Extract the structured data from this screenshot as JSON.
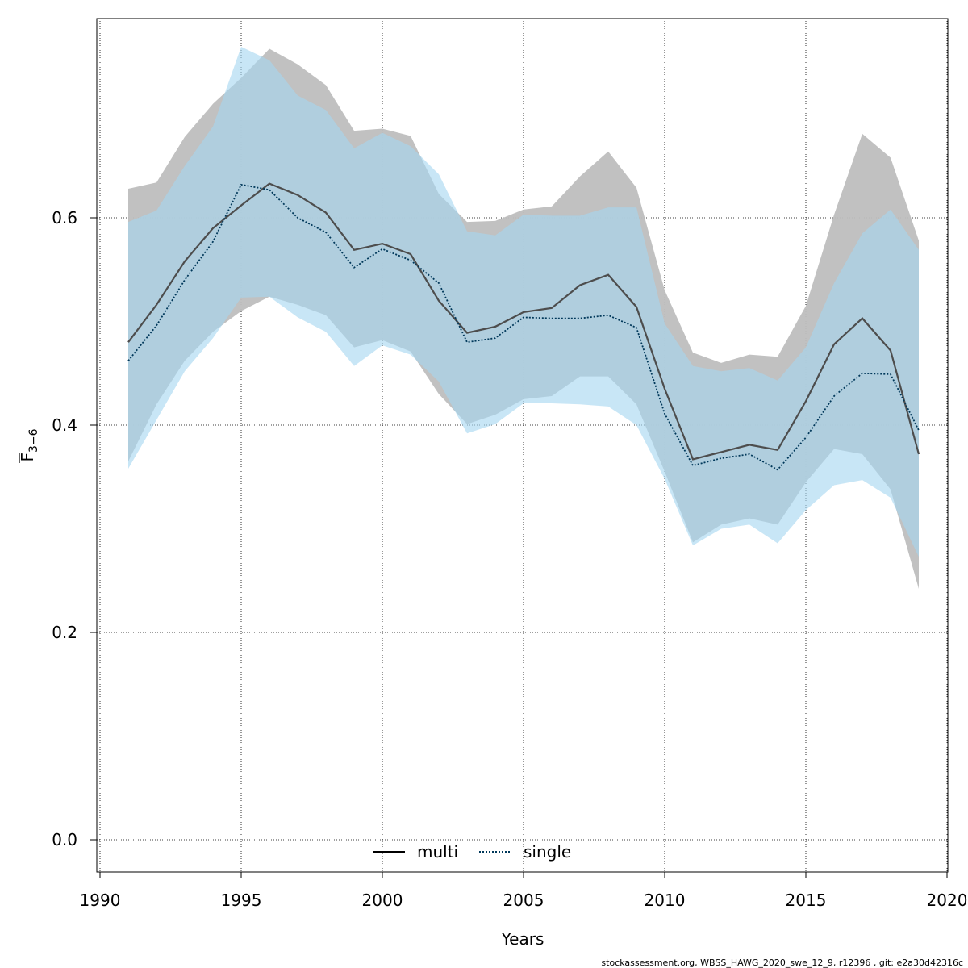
{
  "chart_data": {
    "type": "area",
    "title": "",
    "xlabel": "Years",
    "ylabel_main": "F",
    "ylabel_sub": "3−6",
    "xlim": [
      1990,
      2020
    ],
    "ylim": [
      0.0,
      0.78
    ],
    "xticks": [
      1990,
      1995,
      2000,
      2005,
      2010,
      2015,
      2020
    ],
    "yticks": [
      0.0,
      0.2,
      0.4,
      0.6
    ],
    "ytick_labels": [
      "0.0",
      "0.2",
      "0.4",
      "0.6"
    ],
    "grid": true,
    "legend_position": "bottom-center",
    "x": [
      1991,
      1992,
      1993,
      1994,
      1995,
      1996,
      1997,
      1998,
      1999,
      2000,
      2001,
      2002,
      2003,
      2004,
      2005,
      2006,
      2007,
      2008,
      2009,
      2010,
      2011,
      2012,
      2013,
      2014,
      2015,
      2016,
      2017,
      2018,
      2019
    ],
    "series": [
      {
        "name": "multi",
        "line_style": "solid",
        "line_color": "#4d4d4d",
        "band_color": "#bebebe",
        "values": [
          0.48,
          0.516,
          0.558,
          0.59,
          0.612,
          0.633,
          0.622,
          0.605,
          0.569,
          0.575,
          0.565,
          0.52,
          0.489,
          0.495,
          0.509,
          0.513,
          0.535,
          0.545,
          0.514,
          0.435,
          0.367,
          0.374,
          0.381,
          0.376,
          0.423,
          0.478,
          0.503,
          0.472,
          0.372
        ],
        "lower": [
          0.365,
          0.42,
          0.462,
          0.49,
          0.51,
          0.524,
          0.516,
          0.506,
          0.475,
          0.482,
          0.471,
          0.43,
          0.401,
          0.41,
          0.425,
          0.428,
          0.447,
          0.447,
          0.42,
          0.355,
          0.287,
          0.304,
          0.31,
          0.304,
          0.345,
          0.377,
          0.372,
          0.338,
          0.242
        ],
        "upper": [
          0.628,
          0.634,
          0.678,
          0.71,
          0.735,
          0.763,
          0.748,
          0.728,
          0.684,
          0.686,
          0.679,
          0.623,
          0.596,
          0.597,
          0.608,
          0.611,
          0.64,
          0.664,
          0.629,
          0.53,
          0.47,
          0.46,
          0.468,
          0.466,
          0.515,
          0.603,
          0.681,
          0.658,
          0.578
        ]
      },
      {
        "name": "single",
        "line_style": "dotted",
        "line_color": "#00385a",
        "band_color": "#a7d7f0",
        "values": [
          0.462,
          0.496,
          0.54,
          0.577,
          0.632,
          0.627,
          0.6,
          0.586,
          0.552,
          0.57,
          0.559,
          0.537,
          0.48,
          0.484,
          0.504,
          0.503,
          0.503,
          0.506,
          0.494,
          0.411,
          0.361,
          0.368,
          0.372,
          0.357,
          0.388,
          0.428,
          0.45,
          0.449,
          0.395
        ],
        "lower": [
          0.358,
          0.405,
          0.452,
          0.484,
          0.523,
          0.524,
          0.504,
          0.49,
          0.457,
          0.477,
          0.468,
          0.442,
          0.392,
          0.401,
          0.421,
          0.421,
          0.42,
          0.418,
          0.4,
          0.348,
          0.284,
          0.3,
          0.304,
          0.286,
          0.318,
          0.342,
          0.347,
          0.33,
          0.273
        ],
        "upper": [
          0.596,
          0.607,
          0.65,
          0.688,
          0.765,
          0.752,
          0.718,
          0.704,
          0.667,
          0.682,
          0.669,
          0.642,
          0.587,
          0.583,
          0.603,
          0.602,
          0.602,
          0.61,
          0.61,
          0.498,
          0.457,
          0.452,
          0.455,
          0.443,
          0.475,
          0.537,
          0.585,
          0.608,
          0.569
        ]
      }
    ]
  },
  "footer_text": "stockassessment.org, WBSS_HAWG_2020_swe_12_9, r12396 , git: e2a30d42316c"
}
